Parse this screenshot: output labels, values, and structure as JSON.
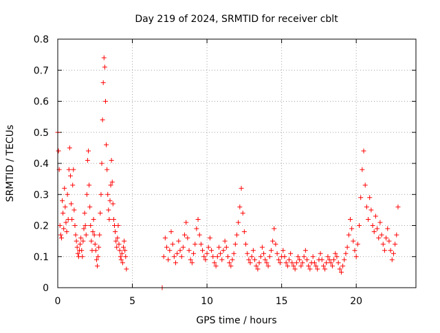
{
  "chart_data": {
    "type": "scatter",
    "title": "Day 219 of 2024, SRMTID for receiver cblt",
    "xlabel": "GPS time / hours",
    "ylabel": "SRMTID / TECUs",
    "xlim": [
      0,
      24
    ],
    "ylim": [
      0,
      0.8
    ],
    "x_ticks": [
      0,
      5,
      10,
      15,
      20
    ],
    "y_ticks": [
      0,
      0.1,
      0.2,
      0.3,
      0.4,
      0.5,
      0.6,
      0.7,
      0.8
    ],
    "grid": true,
    "marker": "+",
    "series": [
      {
        "name": "SRMTID",
        "color": "#ff0000",
        "x": [
          0.0,
          0.05,
          0.1,
          0.15,
          0.2,
          0.25,
          0.3,
          0.35,
          0.4,
          0.45,
          0.5,
          0.55,
          0.6,
          0.65,
          0.7,
          0.75,
          0.8,
          0.85,
          0.9,
          0.95,
          1.0,
          1.05,
          1.1,
          1.15,
          1.2,
          1.25,
          1.3,
          1.35,
          1.4,
          1.45,
          1.5,
          1.55,
          1.6,
          1.65,
          1.7,
          1.75,
          1.8,
          1.85,
          1.9,
          1.95,
          2.0,
          2.05,
          2.1,
          2.15,
          2.2,
          2.25,
          2.3,
          2.35,
          2.4,
          2.45,
          2.5,
          2.55,
          2.6,
          2.65,
          2.7,
          2.75,
          2.8,
          2.85,
          2.9,
          2.95,
          3.0,
          3.05,
          3.1,
          3.15,
          3.2,
          3.25,
          3.3,
          3.35,
          3.4,
          3.45,
          3.5,
          3.55,
          3.6,
          3.65,
          3.7,
          3.75,
          3.8,
          3.85,
          3.9,
          3.95,
          4.0,
          4.05,
          4.1,
          4.15,
          4.2,
          4.25,
          4.3,
          4.35,
          4.4,
          4.45,
          4.5,
          4.55,
          4.6,
          7.0,
          7.1,
          7.2,
          7.3,
          7.4,
          7.5,
          7.6,
          7.7,
          7.8,
          7.9,
          8.0,
          8.1,
          8.2,
          8.3,
          8.4,
          8.5,
          8.6,
          8.7,
          8.8,
          8.9,
          9.0,
          9.1,
          9.2,
          9.3,
          9.4,
          9.5,
          9.6,
          9.7,
          9.8,
          9.9,
          10.0,
          10.1,
          10.2,
          10.3,
          10.4,
          10.5,
          10.6,
          10.7,
          10.8,
          10.9,
          11.0,
          11.1,
          11.2,
          11.3,
          11.4,
          11.5,
          11.6,
          11.7,
          11.8,
          11.9,
          12.0,
          12.1,
          12.2,
          12.3,
          12.4,
          12.5,
          12.6,
          12.7,
          12.8,
          12.9,
          13.0,
          13.1,
          13.2,
          13.3,
          13.4,
          13.5,
          13.6,
          13.7,
          13.8,
          13.9,
          14.0,
          14.1,
          14.2,
          14.3,
          14.4,
          14.5,
          14.6,
          14.7,
          14.8,
          14.9,
          15.0,
          15.1,
          15.2,
          15.3,
          15.4,
          15.5,
          15.6,
          15.7,
          15.8,
          15.9,
          16.0,
          16.1,
          16.2,
          16.3,
          16.4,
          16.5,
          16.6,
          16.7,
          16.8,
          16.9,
          17.0,
          17.1,
          17.2,
          17.3,
          17.4,
          17.5,
          17.6,
          17.7,
          17.8,
          17.9,
          18.0,
          18.1,
          18.2,
          18.3,
          18.4,
          18.5,
          18.6,
          18.7,
          18.8,
          18.9,
          19.0,
          19.1,
          19.2,
          19.3,
          19.4,
          19.5,
          19.6,
          19.7,
          19.8,
          19.9,
          20.0,
          20.1,
          20.2,
          20.3,
          20.4,
          20.5,
          20.6,
          20.7,
          20.8,
          20.9,
          21.0,
          21.1,
          21.2,
          21.3,
          21.4,
          21.5,
          21.6,
          21.7,
          21.8,
          21.9,
          22.0,
          22.1,
          22.2,
          22.3,
          22.4,
          22.5,
          22.6,
          22.7,
          22.8
        ],
        "y": [
          0.5,
          0.44,
          0.38,
          0.2,
          0.17,
          0.16,
          0.28,
          0.24,
          0.19,
          0.32,
          0.26,
          0.21,
          0.18,
          0.3,
          0.22,
          0.38,
          0.45,
          0.36,
          0.27,
          0.22,
          0.33,
          0.38,
          0.25,
          0.2,
          0.17,
          0.15,
          0.13,
          0.11,
          0.1,
          0.12,
          0.14,
          0.16,
          0.12,
          0.1,
          0.15,
          0.19,
          0.24,
          0.2,
          0.17,
          0.3,
          0.41,
          0.44,
          0.33,
          0.26,
          0.2,
          0.15,
          0.12,
          0.18,
          0.22,
          0.17,
          0.14,
          0.12,
          0.09,
          0.07,
          0.1,
          0.13,
          0.17,
          0.24,
          0.3,
          0.4,
          0.54,
          0.66,
          0.74,
          0.71,
          0.6,
          0.46,
          0.38,
          0.3,
          0.25,
          0.22,
          0.28,
          0.33,
          0.41,
          0.34,
          0.27,
          0.22,
          0.2,
          0.18,
          0.15,
          0.13,
          0.16,
          0.2,
          0.14,
          0.12,
          0.1,
          0.09,
          0.11,
          0.08,
          0.13,
          0.15,
          0.12,
          0.1,
          0.06,
          0.0,
          0.1,
          0.16,
          0.13,
          0.09,
          0.12,
          0.18,
          0.14,
          0.1,
          0.08,
          0.11,
          0.15,
          0.12,
          0.1,
          0.13,
          0.17,
          0.21,
          0.16,
          0.12,
          0.09,
          0.08,
          0.11,
          0.14,
          0.19,
          0.22,
          0.17,
          0.14,
          0.12,
          0.1,
          0.09,
          0.11,
          0.13,
          0.16,
          0.12,
          0.1,
          0.08,
          0.07,
          0.1,
          0.13,
          0.11,
          0.09,
          0.12,
          0.15,
          0.13,
          0.1,
          0.08,
          0.07,
          0.09,
          0.11,
          0.14,
          0.17,
          0.21,
          0.26,
          0.32,
          0.24,
          0.18,
          0.14,
          0.11,
          0.09,
          0.08,
          0.1,
          0.12,
          0.09,
          0.07,
          0.06,
          0.08,
          0.1,
          0.13,
          0.11,
          0.09,
          0.08,
          0.07,
          0.1,
          0.12,
          0.15,
          0.19,
          0.14,
          0.11,
          0.09,
          0.08,
          0.1,
          0.12,
          0.1,
          0.08,
          0.07,
          0.09,
          0.11,
          0.08,
          0.07,
          0.06,
          0.08,
          0.1,
          0.09,
          0.07,
          0.08,
          0.1,
          0.12,
          0.09,
          0.07,
          0.06,
          0.08,
          0.1,
          0.08,
          0.07,
          0.06,
          0.09,
          0.11,
          0.09,
          0.07,
          0.06,
          0.08,
          0.1,
          0.09,
          0.08,
          0.07,
          0.09,
          0.11,
          0.1,
          0.08,
          0.06,
          0.05,
          0.07,
          0.09,
          0.11,
          0.13,
          0.17,
          0.22,
          0.19,
          0.15,
          0.12,
          0.1,
          0.14,
          0.2,
          0.29,
          0.38,
          0.44,
          0.33,
          0.26,
          0.22,
          0.29,
          0.25,
          0.2,
          0.18,
          0.23,
          0.19,
          0.16,
          0.21,
          0.17,
          0.14,
          0.12,
          0.16,
          0.19,
          0.15,
          0.12,
          0.09,
          0.11,
          0.14,
          0.17,
          0.26
        ]
      }
    ]
  }
}
